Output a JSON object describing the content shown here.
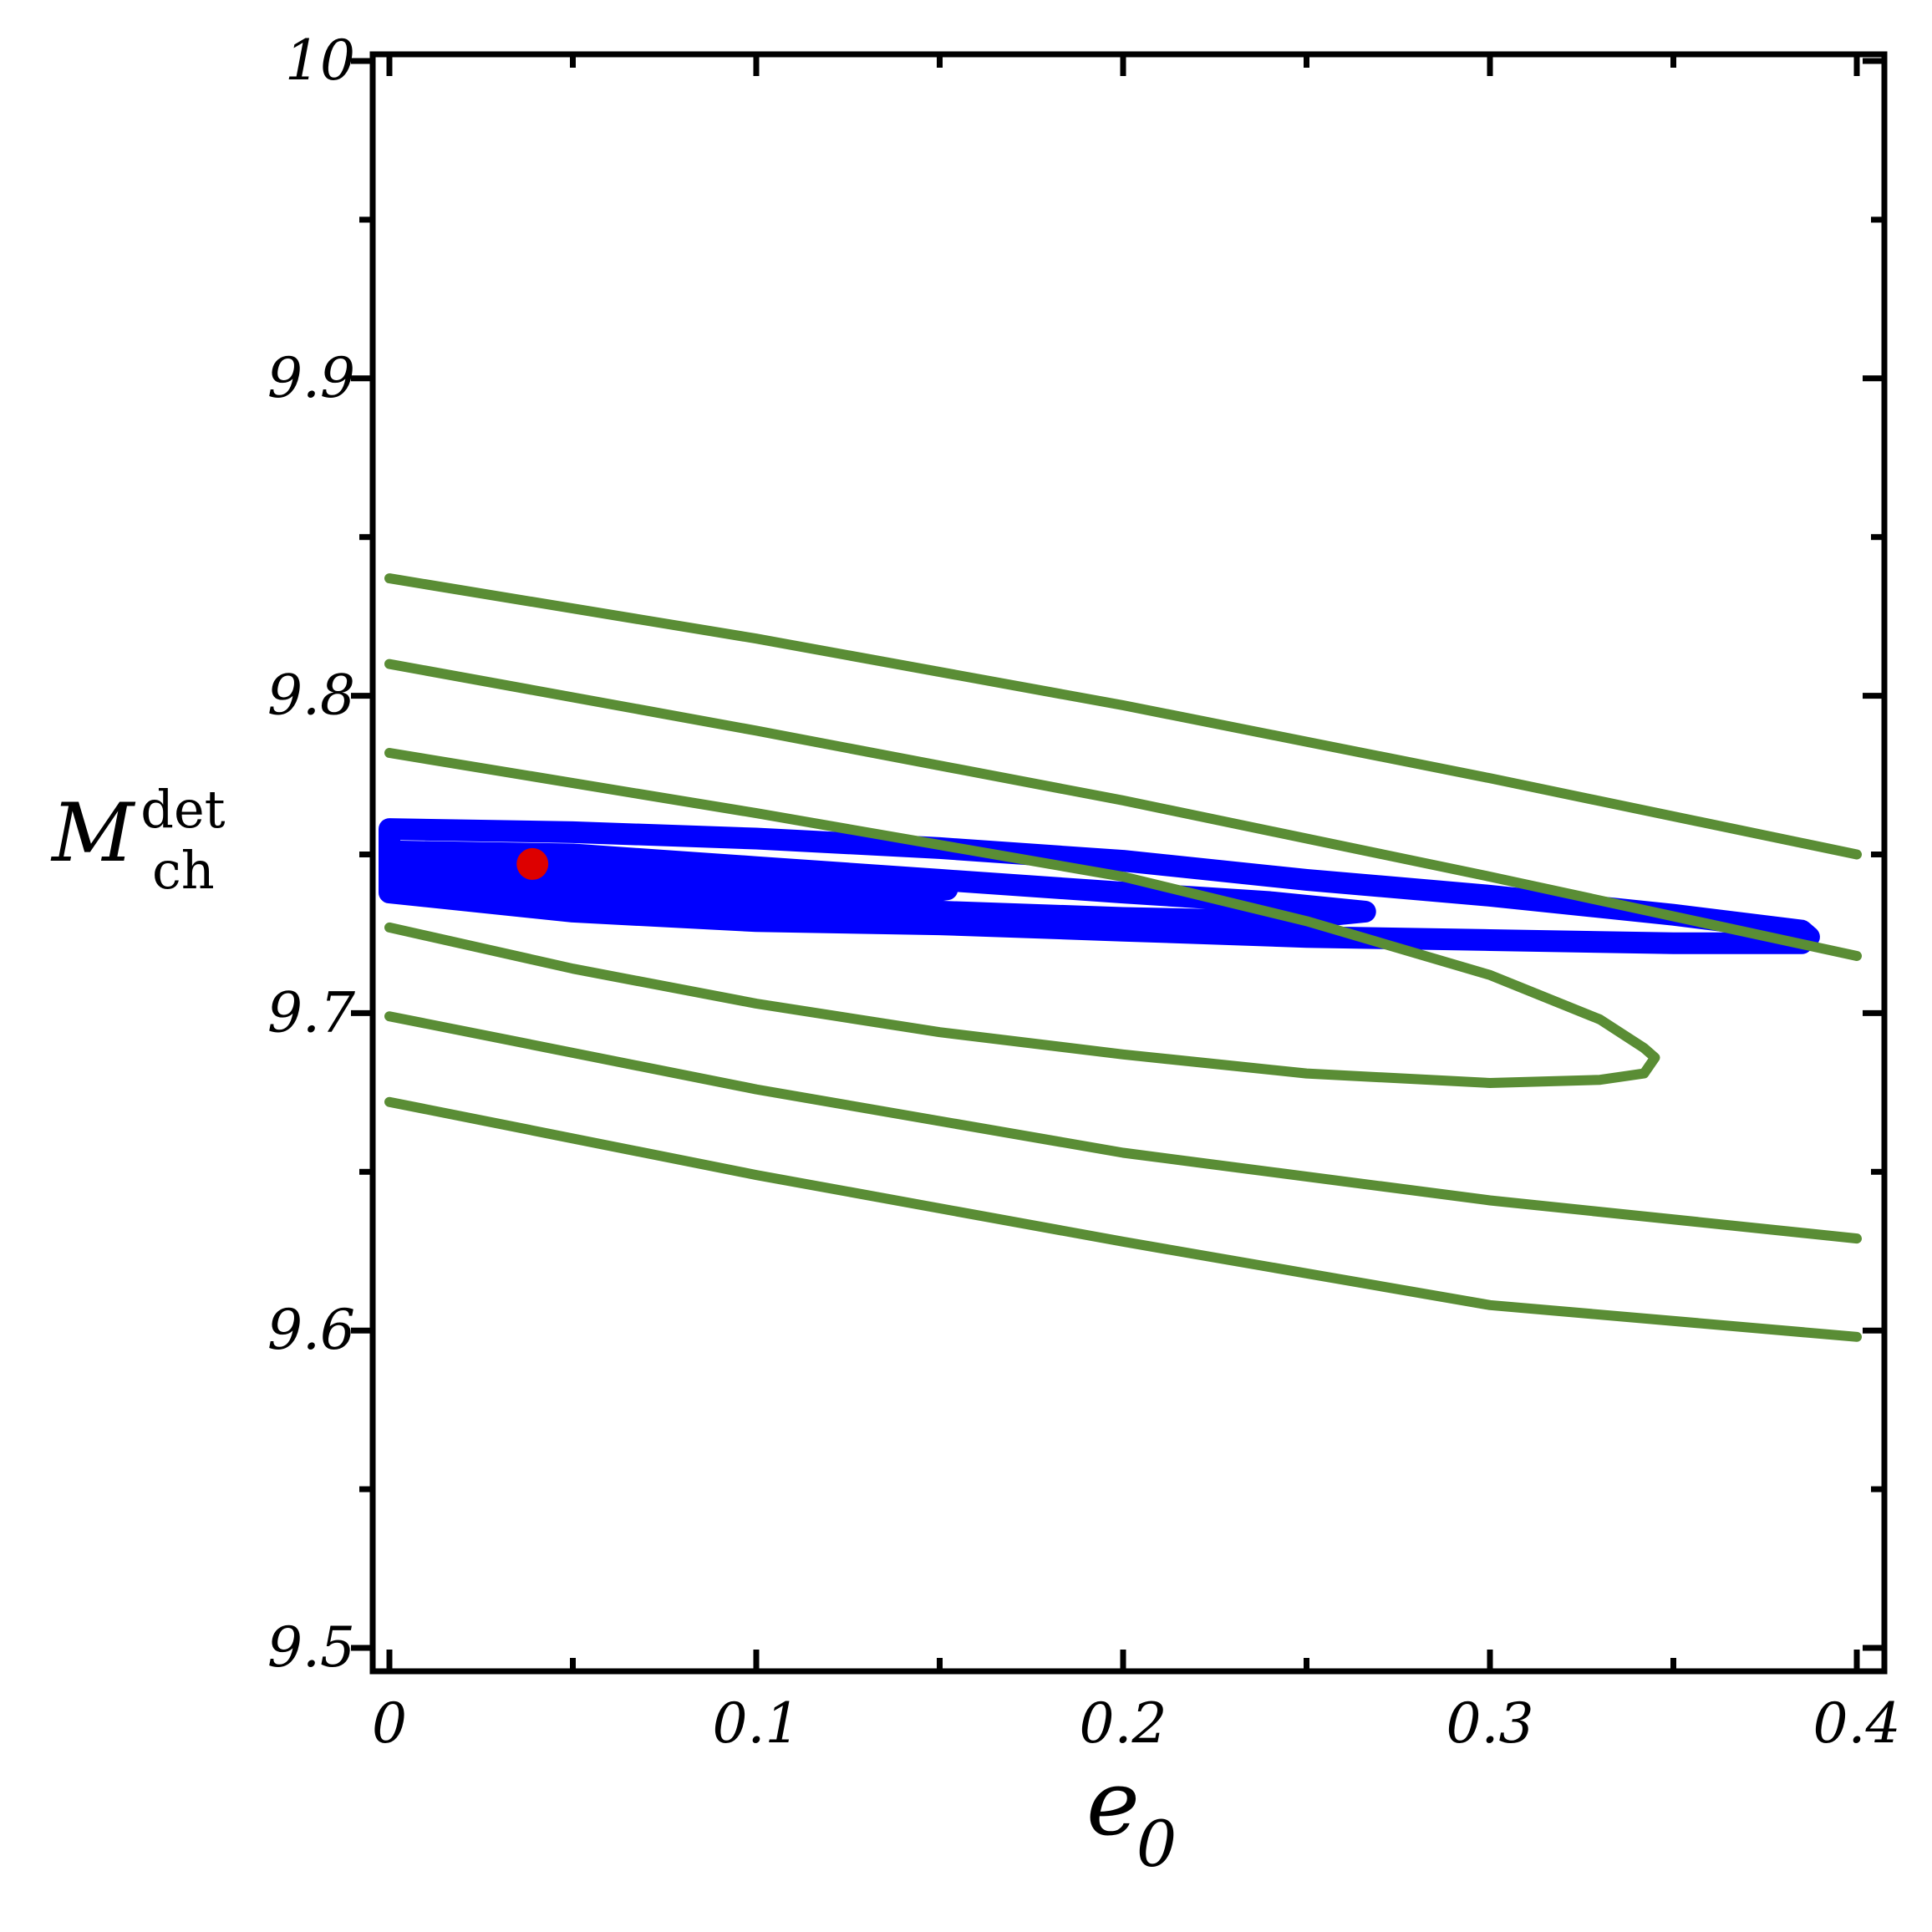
{
  "chart_data": {
    "type": "line",
    "xlabel": {
      "base": "e",
      "subscript": "0"
    },
    "ylabel": {
      "base": "M",
      "subscript": "ch",
      "superscript": "det"
    },
    "xlim": [
      0,
      0.4
    ],
    "ylim": [
      9.5,
      10.0
    ],
    "x_ticks": [
      {
        "value": 0,
        "label": "0"
      },
      {
        "value": 0.1,
        "label": "0.1"
      },
      {
        "value": 0.2,
        "label": "0.2"
      },
      {
        "value": 0.3,
        "label": "0.3"
      },
      {
        "value": 0.4,
        "label": "0.4"
      }
    ],
    "y_ticks": [
      {
        "value": 9.5,
        "label": "9.5"
      },
      {
        "value": 9.6,
        "label": "9.6"
      },
      {
        "value": 9.7,
        "label": "9.7"
      },
      {
        "value": 9.8,
        "label": "9.8"
      },
      {
        "value": 9.9,
        "label": "9.9"
      },
      {
        "value": 10.0,
        "label": "10"
      }
    ],
    "x_minor_step": 0.05,
    "y_minor_step": 0.05,
    "grid": false,
    "series": [
      {
        "color": "#5a8d35",
        "kind": "line",
        "points": [
          [
            0,
            9.837
          ],
          [
            0.1,
            9.818
          ],
          [
            0.2,
            9.797
          ],
          [
            0.3,
            9.774
          ],
          [
            0.4,
            9.75
          ]
        ]
      },
      {
        "color": "#5a8d35",
        "kind": "line",
        "points": [
          [
            0,
            9.81
          ],
          [
            0.1,
            9.789
          ],
          [
            0.2,
            9.767
          ],
          [
            0.3,
            9.743
          ],
          [
            0.4,
            9.718
          ]
        ]
      },
      {
        "color": "#5a8d35",
        "kind": "line",
        "points": [
          [
            0,
            9.782
          ],
          [
            0.1,
            9.763
          ],
          [
            0.2,
            9.743
          ],
          [
            0.25,
            9.729
          ],
          [
            0.3,
            9.712
          ],
          [
            0.33,
            9.698
          ],
          [
            0.342,
            9.689
          ],
          [
            0.345,
            9.686
          ],
          [
            0.342,
            9.681
          ],
          [
            0.33,
            9.679
          ],
          [
            0.3,
            9.678
          ],
          [
            0.25,
            9.681
          ],
          [
            0.2,
            9.687
          ],
          [
            0.15,
            9.694
          ],
          [
            0.1,
            9.703
          ],
          [
            0.05,
            9.714
          ],
          [
            0,
            9.727
          ]
        ]
      },
      {
        "color": "#5a8d35",
        "kind": "line",
        "points": [
          [
            0,
            9.699
          ],
          [
            0.1,
            9.676
          ],
          [
            0.2,
            9.656
          ],
          [
            0.3,
            9.641
          ],
          [
            0.4,
            9.629
          ]
        ]
      },
      {
        "color": "#5a8d35",
        "kind": "line",
        "points": [
          [
            0,
            9.672
          ],
          [
            0.1,
            9.649
          ],
          [
            0.2,
            9.628
          ],
          [
            0.3,
            9.608
          ],
          [
            0.4,
            9.598
          ]
        ]
      },
      {
        "color": "#0000ff",
        "kind": "band",
        "points": [
          [
            0,
            9.758
          ],
          [
            0.05,
            9.757
          ],
          [
            0.1,
            9.755
          ],
          [
            0.15,
            9.752
          ],
          [
            0.2,
            9.748
          ],
          [
            0.25,
            9.742
          ],
          [
            0.3,
            9.737
          ],
          [
            0.35,
            9.731
          ],
          [
            0.385,
            9.726
          ],
          [
            0.387,
            9.724
          ],
          [
            0.385,
            9.722
          ],
          [
            0.35,
            9.722
          ],
          [
            0.3,
            9.723
          ],
          [
            0.25,
            9.724
          ],
          [
            0.2,
            9.726
          ],
          [
            0.15,
            9.728
          ],
          [
            0.1,
            9.729
          ],
          [
            0.05,
            9.732
          ],
          [
            0,
            9.738
          ]
        ]
      },
      {
        "color": "#0000ff",
        "kind": "band",
        "points": [
          [
            0,
            9.751
          ],
          [
            0.05,
            9.75
          ],
          [
            0.1,
            9.746
          ],
          [
            0.15,
            9.742
          ],
          [
            0.2,
            9.738
          ],
          [
            0.24,
            9.735
          ],
          [
            0.266,
            9.732
          ],
          [
            0.24,
            9.729
          ],
          [
            0.2,
            9.73
          ],
          [
            0.15,
            9.732
          ],
          [
            0.1,
            9.734
          ],
          [
            0.05,
            9.737
          ],
          [
            0,
            9.744
          ]
        ]
      },
      {
        "color": "#0000ff",
        "kind": "band",
        "points": [
          [
            0,
            9.746
          ],
          [
            0.05,
            9.744
          ],
          [
            0.1,
            9.742
          ],
          [
            0.14,
            9.74
          ],
          [
            0.152,
            9.739
          ],
          [
            0.14,
            9.737
          ],
          [
            0.1,
            9.737
          ],
          [
            0.05,
            9.739
          ],
          [
            0,
            9.742
          ]
        ]
      }
    ],
    "marker": {
      "x": 0.039,
      "y": 9.747,
      "color": "#dd0000"
    }
  }
}
